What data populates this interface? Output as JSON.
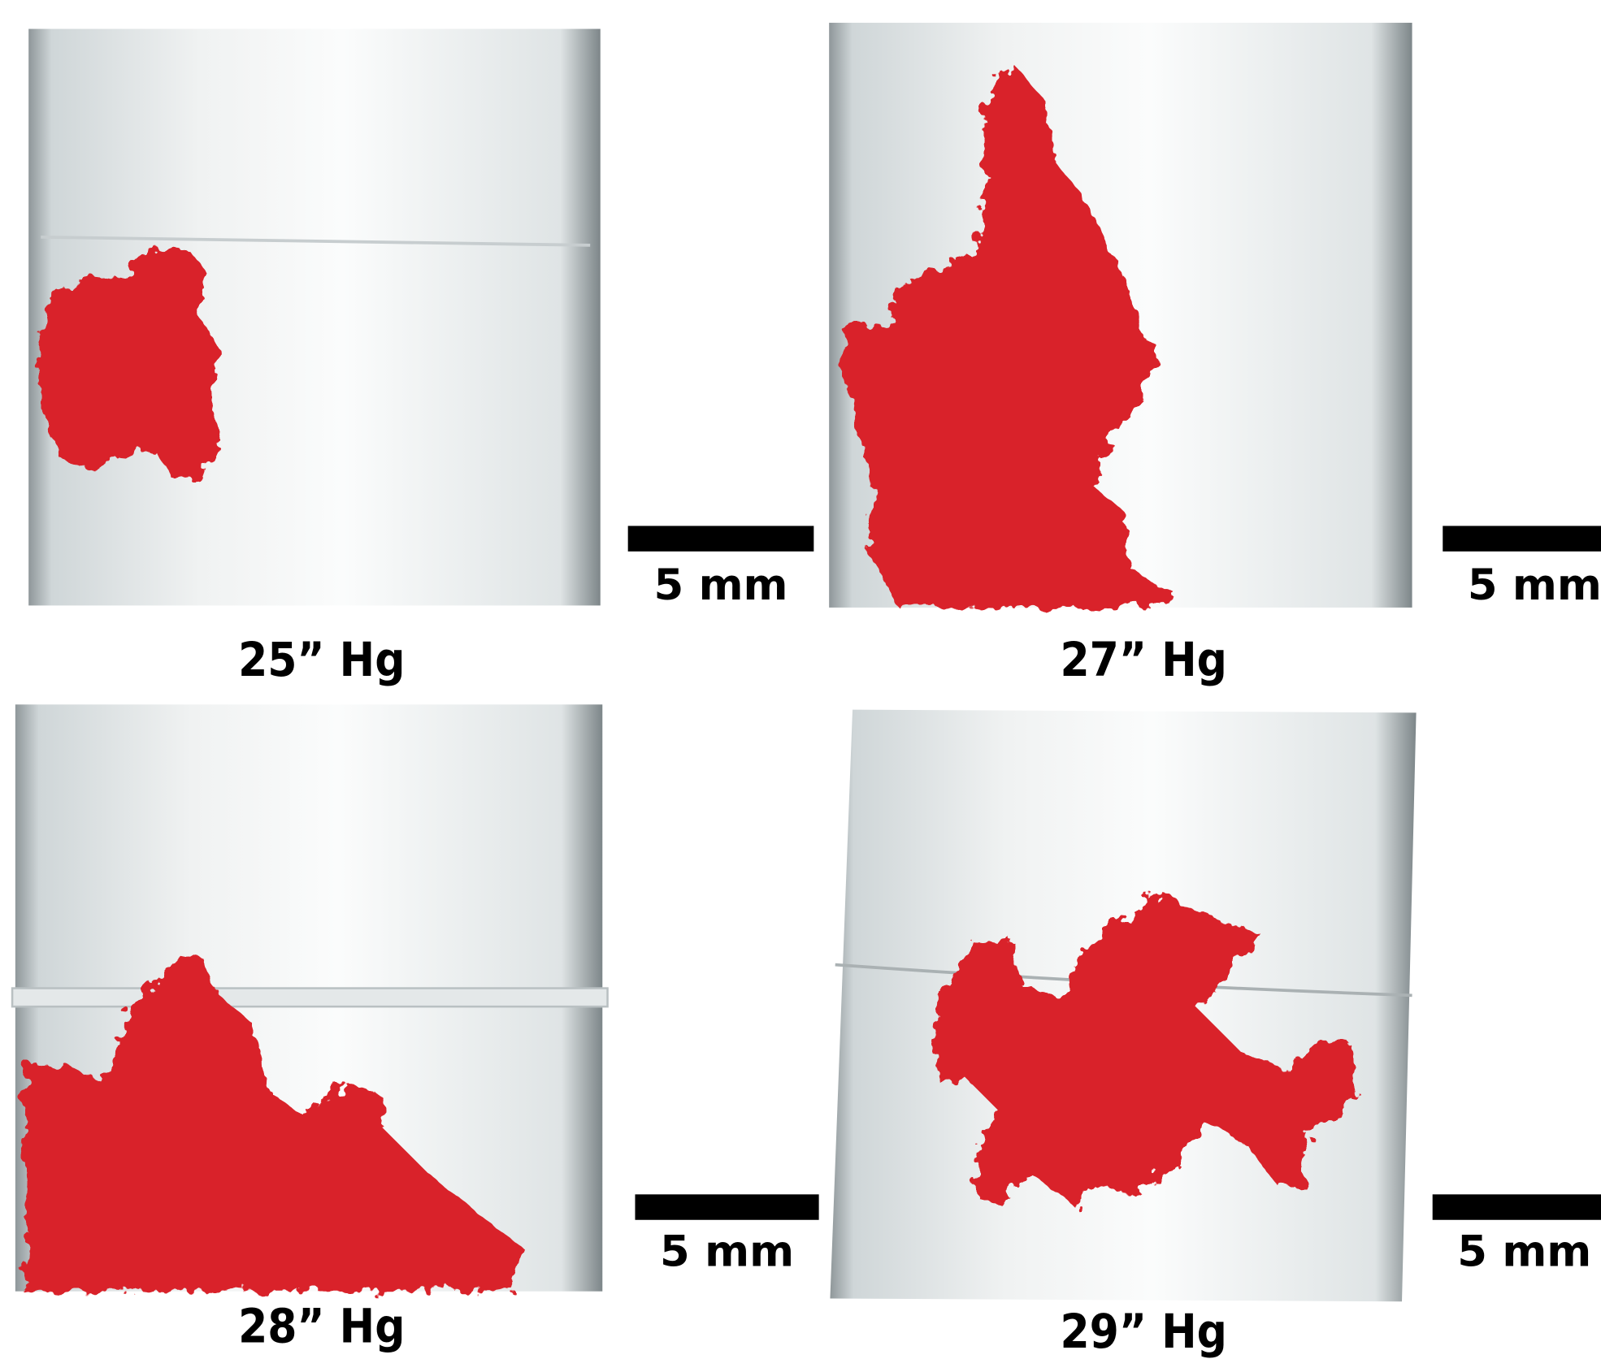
{
  "panels": [
    {
      "label": "25” Hg",
      "scale_bar": "5 mm"
    },
    {
      "label": "27” Hg",
      "scale_bar": "5 mm"
    },
    {
      "label": "28” Hg",
      "scale_bar": "5 mm"
    },
    {
      "label": "29” Hg",
      "scale_bar": "5 mm"
    }
  ]
}
